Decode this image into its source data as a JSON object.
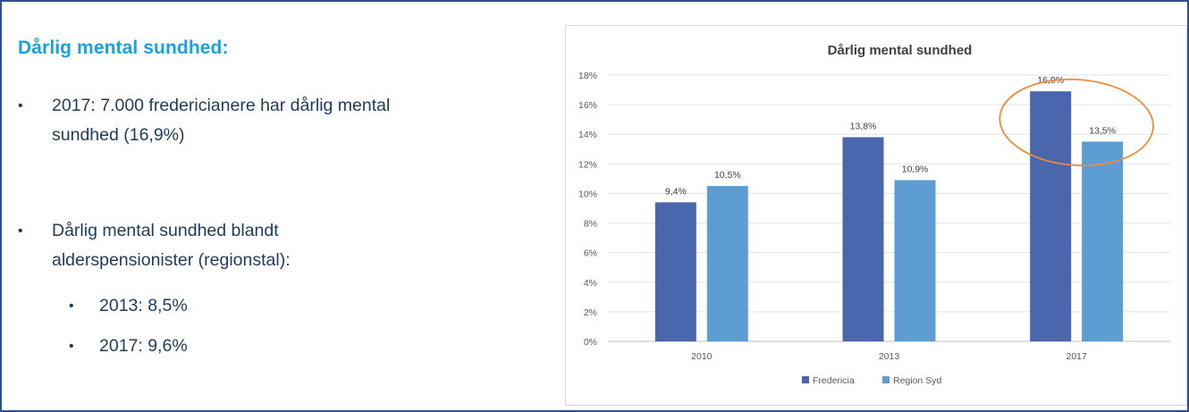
{
  "left_panel": {
    "heading": "Dårlig mental sundhed:",
    "bullet1_line1": "2017: 7.000 fredericianere har dårlig mental",
    "bullet1_line2": "sundhed (16,9%)",
    "bullet2_line1": "Dårlig mental sundhed blandt",
    "bullet2_line2": "alderspensionister (regionstal):",
    "sub_items": [
      "2013: 8,5%",
      "2017: 9,6%"
    ],
    "bullet_char": "•"
  },
  "chart_data": {
    "type": "bar",
    "title": "Dårlig mental sundhed",
    "categories": [
      "2010",
      "2013",
      "2017"
    ],
    "series": [
      {
        "name": "Fredericia",
        "values": [
          9.4,
          13.8,
          16.9
        ],
        "labels": [
          "9,4%",
          "13,8%",
          "16,9%"
        ],
        "color": "#4a66ac"
      },
      {
        "name": "Region Syd",
        "values": [
          10.5,
          10.9,
          13.5
        ],
        "labels": [
          "10,5%",
          "10,9%",
          "13,5%"
        ],
        "color": "#5e9dd3"
      }
    ],
    "ylim": [
      0,
      18
    ],
    "yticks": [
      "0%",
      "2%",
      "4%",
      "6%",
      "8%",
      "10%",
      "12%",
      "14%",
      "16%",
      "18%"
    ],
    "grid": true,
    "legend_position": "bottom",
    "highlight_color": "#ed8b3a"
  }
}
